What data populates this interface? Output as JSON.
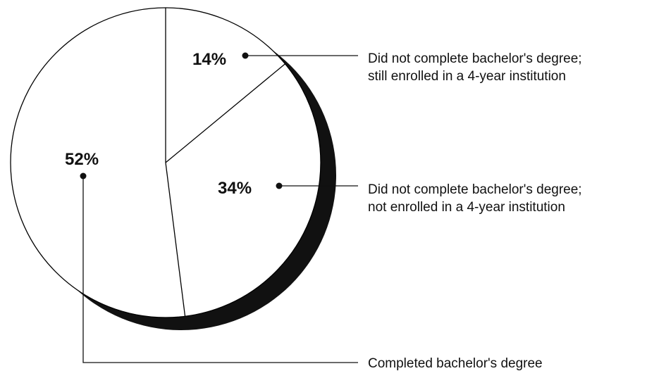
{
  "chart_data": {
    "type": "pie",
    "title": "",
    "slices": [
      {
        "label": "Did not complete bachelor's degree; still enrolled in a 4-year institution",
        "label_lines": [
          "Did not complete bachelor's degree;",
          "still enrolled in a 4-year institution"
        ],
        "value": 14,
        "display": "14%"
      },
      {
        "label": "Did not complete bachelor's degree; not enrolled in a 4-year institution",
        "label_lines": [
          "Did not complete bachelor's degree;",
          "not enrolled in a 4-year institution"
        ],
        "value": 34,
        "display": "34%"
      },
      {
        "label": "Completed bachelor's degree",
        "label_lines": [
          "Completed bachelor's degree"
        ],
        "value": 52,
        "display": "52%"
      }
    ],
    "start_position": "top",
    "direction": "clockwise",
    "colors": {
      "fill": "#ffffff",
      "stroke": "#000000",
      "shadow": "#111111"
    }
  }
}
